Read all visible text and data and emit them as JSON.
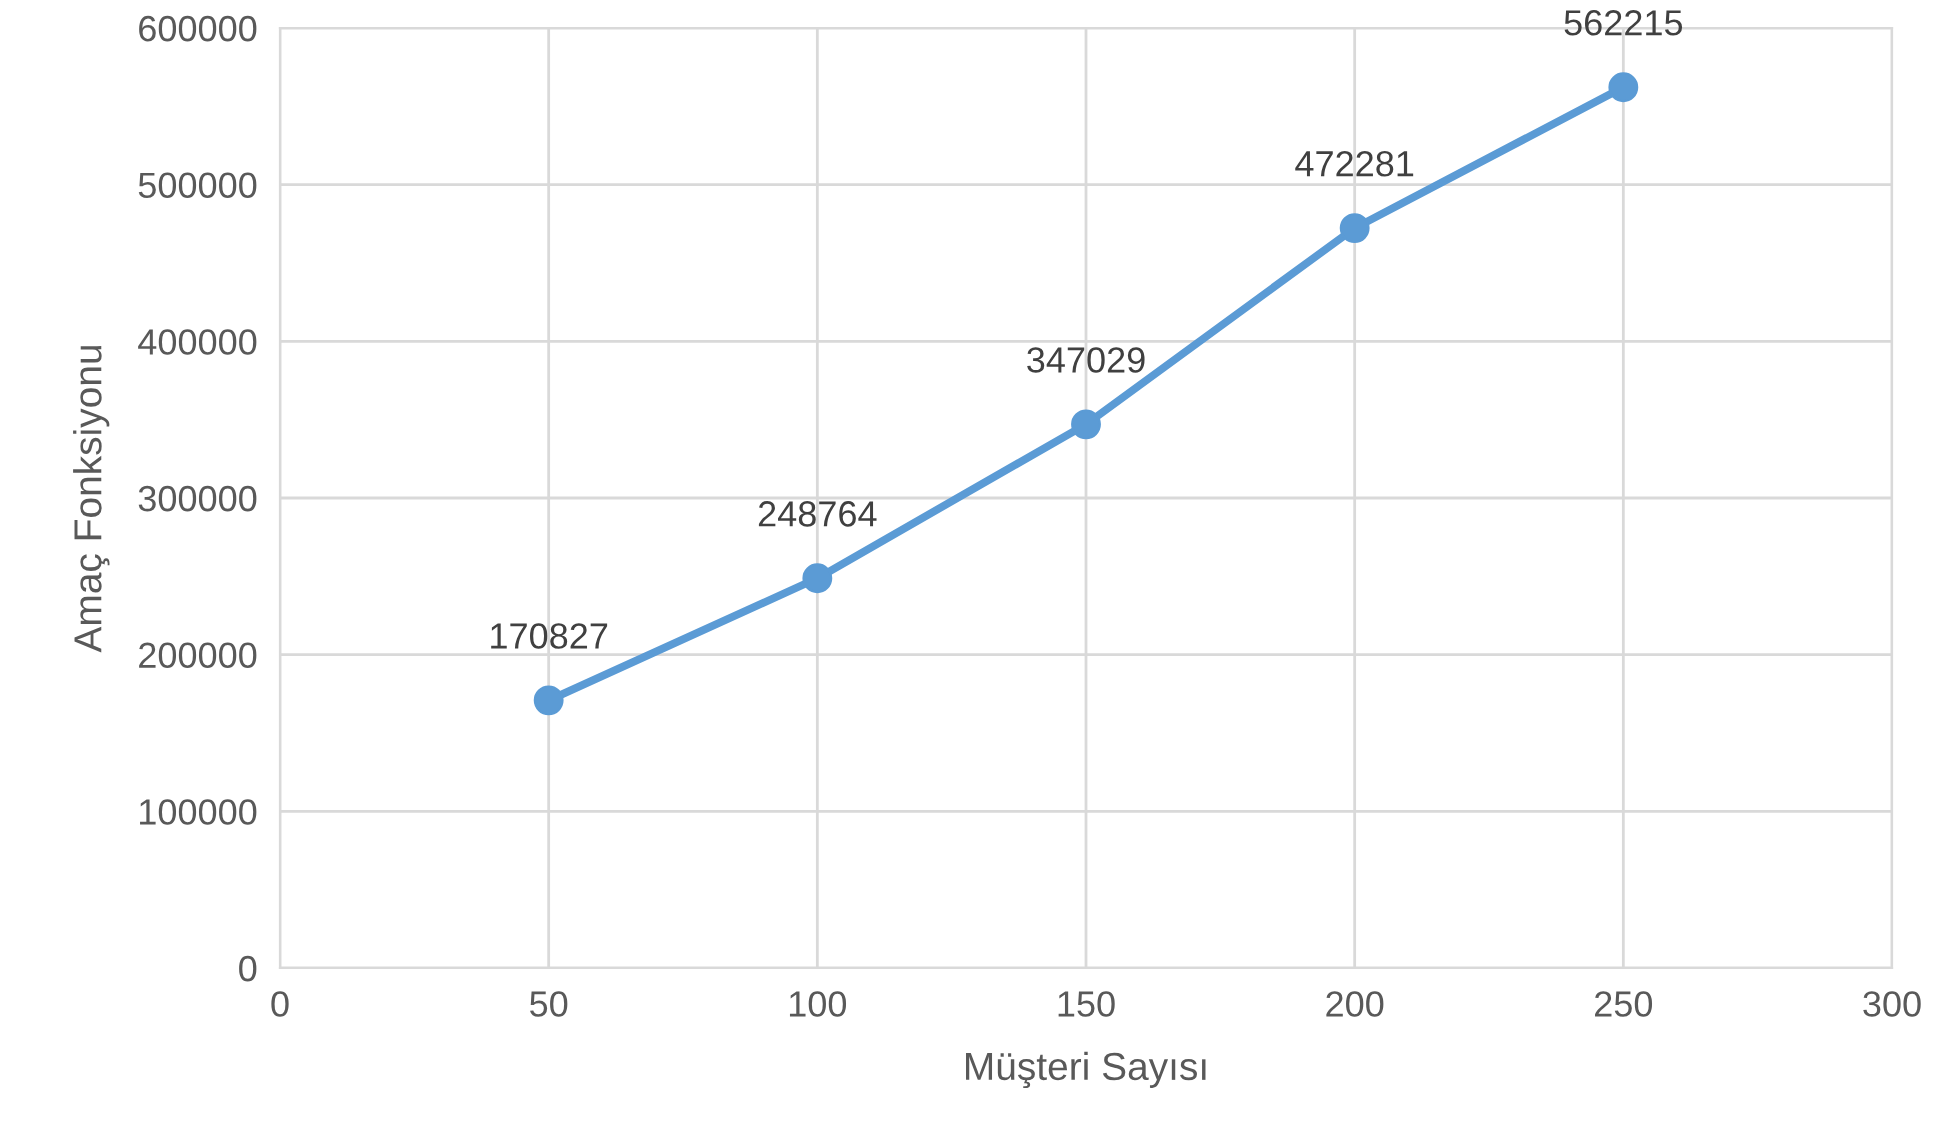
{
  "chart_data": {
    "type": "line",
    "xlabel": "Müşteri Sayısı",
    "ylabel": "Amaç Fonksiyonu",
    "x": [
      50,
      100,
      150,
      200,
      250
    ],
    "series": [
      {
        "color": "#5b9bd5",
        "values": [
          170827,
          248764,
          347029,
          472281,
          562215
        ]
      }
    ],
    "xlim": [
      0,
      300
    ],
    "xticks": [
      0,
      50,
      100,
      150,
      200,
      250,
      300
    ],
    "ylim": [
      0,
      600000
    ],
    "yticks": [
      0,
      100000,
      200000,
      300000,
      400000,
      500000,
      600000
    ],
    "grid": true,
    "marker": "circle",
    "line_style": "solid",
    "data_labels": true
  }
}
